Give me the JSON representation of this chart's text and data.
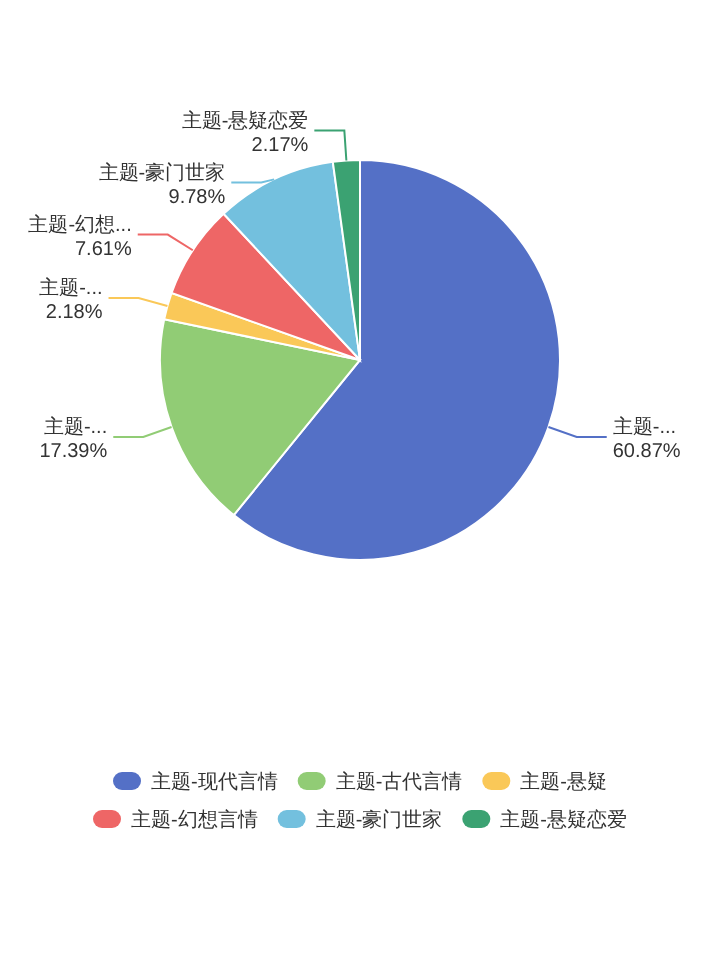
{
  "chart_data": {
    "type": "pie",
    "categories": [
      "主题-现代言情",
      "主题-古代言情",
      "主题-悬疑",
      "主题-幻想言情",
      "主题-豪门世家",
      "主题-悬疑恋爱"
    ],
    "values": [
      60.87,
      17.39,
      2.18,
      7.61,
      9.78,
      2.17
    ],
    "value_labels": [
      "60.87%",
      "17.39%",
      "2.18%",
      "7.61%",
      "9.78%",
      "2.17%"
    ],
    "annotations": [
      {
        "text": "主题-...",
        "x": "主题-现代言情"
      },
      {
        "text": "主题-...",
        "x": "主题-古代言情"
      },
      {
        "text": "主题-...",
        "x": "主题-悬疑"
      },
      {
        "text": "主题-幻想...",
        "x": "主题-幻想言情"
      },
      {
        "text": "主题-豪门世家",
        "x": "主题-豪门世家"
      },
      {
        "text": "主题-悬疑恋爱",
        "x": "主题-悬疑恋爱"
      }
    ],
    "colors": [
      "#5470c6",
      "#91cc75",
      "#fac858",
      "#ee6666",
      "#73c0de",
      "#3ba272"
    ],
    "legend": "bottom"
  }
}
